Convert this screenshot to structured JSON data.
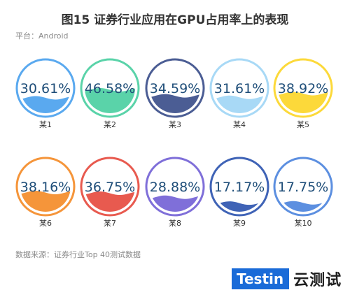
{
  "title": "图15 证券行业应用在GPU占用率上的表现",
  "platform": "平台：Android",
  "source": "数据来源：证券行业Top 40测试数据",
  "logo": {
    "brand": "Testin",
    "cn": "云测试"
  },
  "colors": [
    "#5aa9ef",
    "#5ad3a9",
    "#4b5d94",
    "#a8d9f6",
    "#fcd93a",
    "#f5953a",
    "#e85a4f",
    "#7f6fd9",
    "#3f63b6",
    "#5c8fe0"
  ],
  "chart_data": {
    "type": "liquid-fill gauge",
    "categories": [
      "某1",
      "某2",
      "某3",
      "某4",
      "某5",
      "某6",
      "某7",
      "某8",
      "某9",
      "某10"
    ],
    "values": [
      30.61,
      46.58,
      34.59,
      31.61,
      38.92,
      38.16,
      36.75,
      28.88,
      17.17,
      17.75
    ],
    "labels": [
      "30.61%",
      "46.58%",
      "34.59%",
      "31.61%",
      "38.92%",
      "38.16%",
      "36.75%",
      "28.88%",
      "17.17%",
      "17.75%"
    ],
    "unit": "%"
  }
}
